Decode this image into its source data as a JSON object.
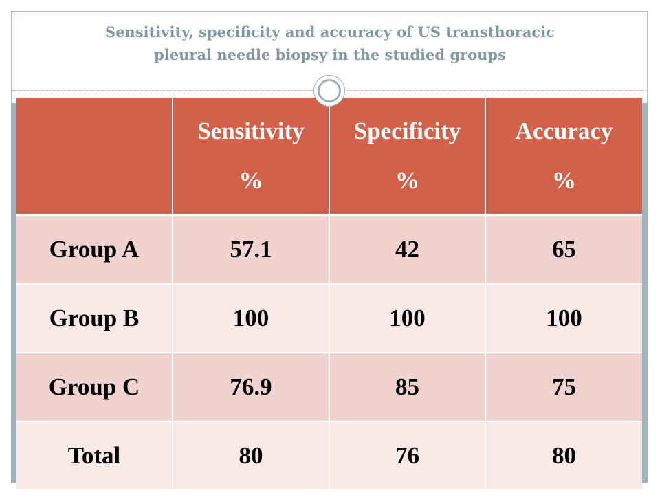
{
  "slide": {
    "title_line1": "Sensitivity, specificity and accuracy of US transthoracic",
    "title_line2": "pleural needle biopsy in the studied groups"
  },
  "table": {
    "headers": [
      {
        "label": "",
        "unit": ""
      },
      {
        "label": "Sensitivity",
        "unit": "%"
      },
      {
        "label": "Specificity",
        "unit": "%"
      },
      {
        "label": "Accuracy",
        "unit": "%"
      }
    ],
    "rows": [
      {
        "group": "Group A",
        "sensitivity": "57.1",
        "specificity": "42",
        "accuracy": "65"
      },
      {
        "group": "Group B",
        "sensitivity": "100",
        "specificity": "100",
        "accuracy": "100"
      },
      {
        "group": "Group C",
        "sensitivity": "76.9",
        "specificity": "85",
        "accuracy": "75"
      },
      {
        "group": "Total",
        "sensitivity": "80",
        "specificity": "76",
        "accuracy": "80"
      }
    ]
  },
  "colors": {
    "header_fill": "#d2614a",
    "row_odd_fill": "#f0d3cf",
    "row_even_fill": "#f8e9e7",
    "title_color": "#7f9aa6",
    "frame_color": "#9fb3bc"
  }
}
